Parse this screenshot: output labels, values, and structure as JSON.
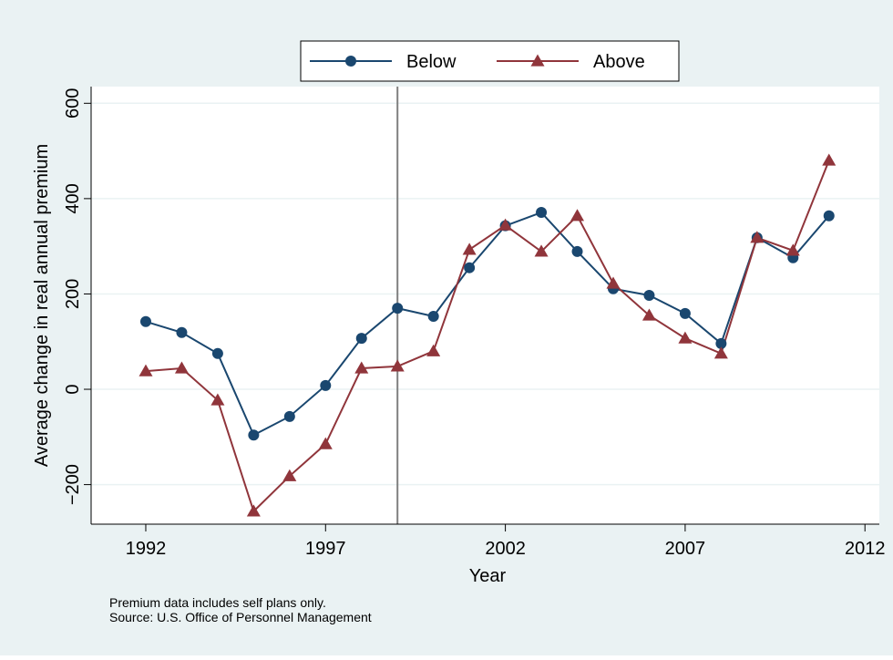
{
  "chart_data": {
    "type": "line",
    "xlabel": "Year",
    "ylabel": "Average change in real annual premium",
    "x": [
      1992,
      1993,
      1994,
      1995,
      1996,
      1997,
      1998,
      1999,
      2000,
      2001,
      2002,
      2003,
      2004,
      2005,
      2006,
      2007,
      2008,
      2009,
      2010,
      2011
    ],
    "series": [
      {
        "name": "Below",
        "color": "#1a476f",
        "marker": "circle",
        "values": [
          142,
          119,
          75,
          -96,
          -57,
          8,
          107,
          170,
          153,
          255,
          343,
          371,
          289,
          211,
          197,
          159,
          96,
          318,
          276,
          364
        ]
      },
      {
        "name": "Above",
        "color": "#90353b",
        "marker": "triangle",
        "values": [
          38,
          44,
          -23,
          -256,
          -182,
          -115,
          44,
          48,
          80,
          293,
          344,
          289,
          364,
          222,
          155,
          107,
          75,
          318,
          291,
          480
        ]
      }
    ],
    "xlim": [
      1990.48,
      2012.4
    ],
    "ylim": [
      -283,
      635
    ],
    "xticks": [
      1992,
      1997,
      2002,
      2007,
      2012
    ],
    "yticks": [
      {
        "value": -200,
        "label": "−200"
      },
      0,
      200,
      400,
      600
    ],
    "xline": 1999,
    "xline_color": "#7f7f7f",
    "grid": true,
    "legend": "top",
    "notes": [
      "Premium data includes self plans only.",
      "Source: U.S. Office of Personnel Management"
    ]
  }
}
